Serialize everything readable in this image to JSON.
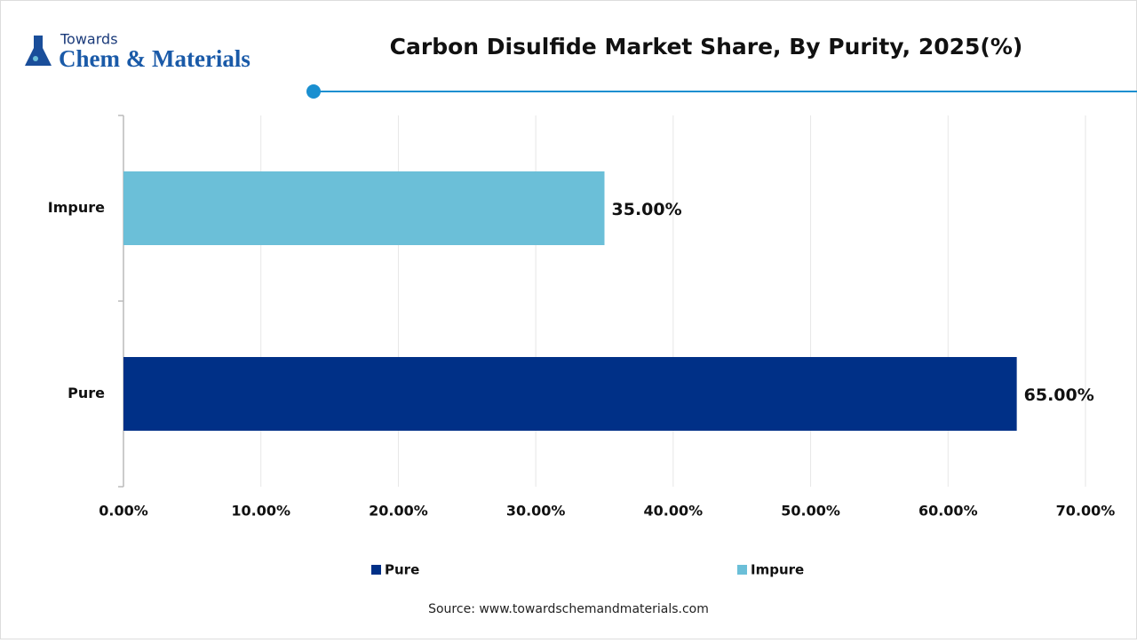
{
  "logo": {
    "line1": "Towards",
    "line2": "Chem & Materials"
  },
  "chart_data": {
    "type": "hbar",
    "title": "Carbon Disulfide Market Share, By Purity, 2025(%)",
    "categories": [
      "Pure",
      "Impure"
    ],
    "series": [
      {
        "name": "Pure",
        "color": "#003087",
        "values": [
          65,
          null
        ],
        "value_labels": [
          "65.00%",
          null
        ]
      },
      {
        "name": "Impure",
        "color": "#6bbfd8",
        "values": [
          null,
          35
        ],
        "value_labels": [
          null,
          "35.00%"
        ]
      }
    ],
    "xlim": [
      0,
      70
    ],
    "xticks": [
      {
        "value": 0,
        "label": "0.00%"
      },
      {
        "value": 10,
        "label": "10.00%"
      },
      {
        "value": 20,
        "label": "20.00%"
      },
      {
        "value": 30,
        "label": "30.00%"
      },
      {
        "value": 40,
        "label": "40.00%"
      },
      {
        "value": 50,
        "label": "50.00%"
      },
      {
        "value": 60,
        "label": "60.00%"
      },
      {
        "value": 70,
        "label": "70.00%"
      }
    ],
    "grid": true,
    "legend": "bottom",
    "source": "Source: www.towardschemandmaterials.com"
  }
}
